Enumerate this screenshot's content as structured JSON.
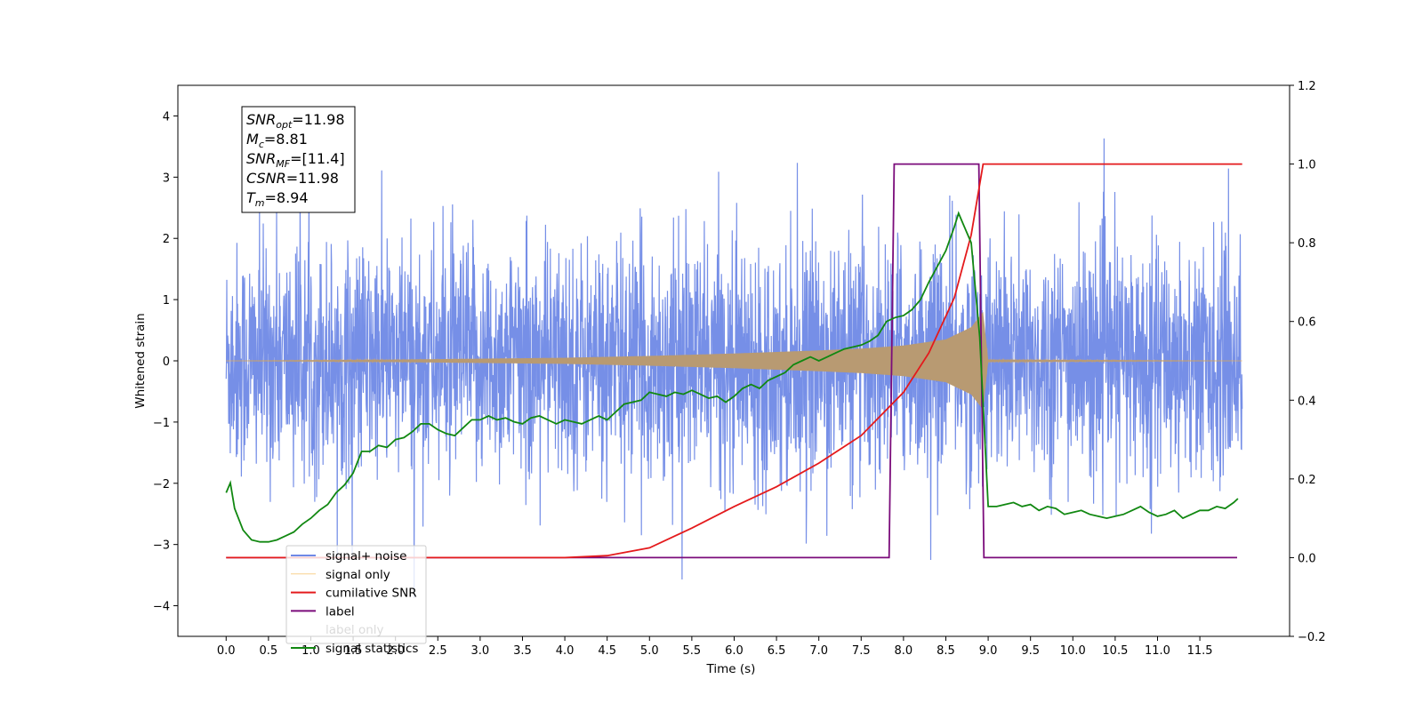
{
  "chart_data": {
    "type": "line",
    "xlabel": "Time (s)",
    "ylabel": "Whitened strain",
    "xlim": [
      -0.57,
      12.56
    ],
    "ylim": [
      -4.5,
      4.5
    ],
    "y2lim": [
      -0.2,
      1.2
    ],
    "xticks": [
      "0.0",
      "0.5",
      "1.0",
      "1.5",
      "2.0",
      "2.5",
      "3.0",
      "3.5",
      "4.0",
      "4.5",
      "5.0",
      "5.5",
      "6.0",
      "6.5",
      "7.0",
      "7.5",
      "8.0",
      "8.5",
      "9.0",
      "9.5",
      "10.0",
      "10.5",
      "11.0",
      "11.5"
    ],
    "yticks": [
      "−4",
      "−3",
      "−2",
      "−1",
      "0",
      "1",
      "2",
      "3",
      "4"
    ],
    "y2ticks": [
      "−0.2",
      "0.0",
      "0.2",
      "0.4",
      "0.6",
      "0.8",
      "1.0",
      "1.2"
    ],
    "grid": false,
    "legend_position": "lower-left",
    "info_box": [
      {
        "sym": "SNR",
        "sub": "opt",
        "val": "=11.98"
      },
      {
        "sym": "M",
        "sub": "c",
        "val": "=8.81"
      },
      {
        "sym": "SNR",
        "sub": "MF",
        "val": "=[11.4]"
      },
      {
        "sym": "CSNR",
        "sub": "",
        "val": "=11.98"
      },
      {
        "sym": "T",
        "sub": "m",
        "val": "=8.94"
      }
    ],
    "series": [
      {
        "name": "signal+ noise",
        "axis": "left",
        "color": "#6f89e6",
        "description_points": {
          "t_start": 0.0,
          "t_end": 12.0,
          "noise_sigma": 1.0,
          "max": 4.03,
          "min": -4.12
        }
      },
      {
        "name": "signal only",
        "axis": "left",
        "color": "#f5b041",
        "envelope": {
          "t": [
            0.0,
            2.0,
            4.0,
            5.0,
            6.0,
            7.0,
            7.5,
            8.0,
            8.5,
            8.8,
            8.94,
            9.0,
            12.0
          ],
          "amp": [
            0.0,
            0.02,
            0.05,
            0.08,
            0.12,
            0.17,
            0.2,
            0.25,
            0.35,
            0.55,
            0.8,
            0.02,
            0.0
          ]
        }
      },
      {
        "name": "cumilative SNR",
        "axis": "right",
        "color": "#e41a1c",
        "x": [
          0.0,
          4.0,
          4.5,
          5.0,
          5.5,
          6.0,
          6.5,
          7.0,
          7.5,
          8.0,
          8.3,
          8.6,
          8.8,
          8.94,
          9.0,
          12.0
        ],
        "y": [
          0.0,
          0.0,
          0.005,
          0.025,
          0.075,
          0.13,
          0.18,
          0.24,
          0.31,
          0.42,
          0.52,
          0.66,
          0.82,
          1.0,
          1.0,
          1.0
        ]
      },
      {
        "name": "label",
        "axis": "right",
        "color": "#7b0c7b",
        "x": [
          0.0,
          7.83,
          7.89,
          8.89,
          8.95,
          11.94
        ],
        "y": [
          0.0,
          0.0,
          1.0,
          1.0,
          0.0,
          0.0
        ]
      },
      {
        "name": "label only",
        "axis": "right",
        "color": "#7b0c7b",
        "hidden": true
      },
      {
        "name": "signal statistics",
        "axis": "right",
        "color": "#118811",
        "x": [
          0.0,
          0.05,
          0.1,
          0.2,
          0.3,
          0.4,
          0.5,
          0.6,
          0.7,
          0.8,
          0.9,
          1.0,
          1.1,
          1.2,
          1.3,
          1.4,
          1.5,
          1.6,
          1.7,
          1.8,
          1.9,
          2.0,
          2.1,
          2.2,
          2.3,
          2.4,
          2.5,
          2.6,
          2.7,
          2.8,
          2.9,
          3.0,
          3.1,
          3.2,
          3.3,
          3.4,
          3.5,
          3.6,
          3.7,
          3.8,
          3.9,
          4.0,
          4.1,
          4.2,
          4.3,
          4.4,
          4.5,
          4.6,
          4.7,
          4.8,
          4.9,
          5.0,
          5.1,
          5.2,
          5.3,
          5.4,
          5.5,
          5.6,
          5.7,
          5.8,
          5.9,
          6.0,
          6.1,
          6.2,
          6.3,
          6.4,
          6.5,
          6.6,
          6.7,
          6.8,
          6.9,
          7.0,
          7.1,
          7.2,
          7.3,
          7.4,
          7.5,
          7.6,
          7.7,
          7.8,
          7.9,
          8.0,
          8.1,
          8.2,
          8.3,
          8.4,
          8.5,
          8.6,
          8.65,
          8.7,
          8.8,
          8.9,
          9.0,
          9.1,
          9.2,
          9.3,
          9.4,
          9.5,
          9.6,
          9.7,
          9.8,
          9.9,
          10.0,
          10.1,
          10.2,
          10.3,
          10.4,
          10.5,
          10.6,
          10.7,
          10.8,
          10.9,
          11.0,
          11.1,
          11.2,
          11.3,
          11.4,
          11.5,
          11.6,
          11.7,
          11.8,
          11.9,
          11.95
        ],
        "y": [
          0.165,
          0.19,
          0.125,
          0.07,
          0.045,
          0.04,
          0.04,
          0.045,
          0.055,
          0.065,
          0.085,
          0.1,
          0.12,
          0.135,
          0.165,
          0.185,
          0.215,
          0.27,
          0.27,
          0.285,
          0.28,
          0.3,
          0.305,
          0.32,
          0.34,
          0.34,
          0.325,
          0.315,
          0.31,
          0.33,
          0.35,
          0.35,
          0.36,
          0.35,
          0.355,
          0.345,
          0.34,
          0.355,
          0.36,
          0.35,
          0.34,
          0.35,
          0.345,
          0.34,
          0.35,
          0.36,
          0.35,
          0.37,
          0.39,
          0.395,
          0.4,
          0.42,
          0.415,
          0.41,
          0.42,
          0.415,
          0.425,
          0.415,
          0.405,
          0.41,
          0.395,
          0.41,
          0.43,
          0.44,
          0.43,
          0.45,
          0.46,
          0.47,
          0.49,
          0.5,
          0.51,
          0.5,
          0.51,
          0.52,
          0.53,
          0.535,
          0.54,
          0.55,
          0.565,
          0.6,
          0.61,
          0.615,
          0.63,
          0.655,
          0.7,
          0.74,
          0.78,
          0.84,
          0.875,
          0.85,
          0.8,
          0.56,
          0.13,
          0.13,
          0.135,
          0.14,
          0.13,
          0.135,
          0.12,
          0.13,
          0.125,
          0.11,
          0.115,
          0.12,
          0.11,
          0.105,
          0.1,
          0.105,
          0.11,
          0.12,
          0.13,
          0.115,
          0.105,
          0.11,
          0.12,
          0.1,
          0.11,
          0.12,
          0.12,
          0.13,
          0.125,
          0.14,
          0.15
        ]
      }
    ],
    "legend": [
      "signal+ noise",
      "signal only",
      "cumilative SNR",
      "label",
      "label only",
      "signal statistics"
    ]
  }
}
